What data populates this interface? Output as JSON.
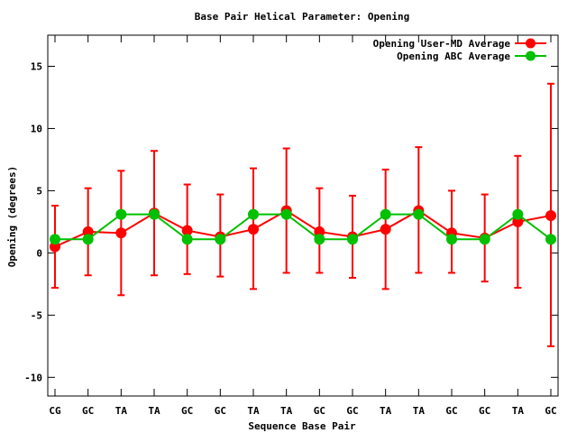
{
  "chart_data": {
    "type": "line",
    "title": "Base Pair Helical Parameter: Opening",
    "xlabel": "Sequence Base Pair",
    "ylabel": "Opening (degrees)",
    "categories": [
      "CG",
      "GC",
      "TA",
      "TA",
      "GC",
      "GC",
      "TA",
      "TA",
      "GC",
      "GC",
      "TA",
      "TA",
      "GC",
      "GC",
      "TA",
      "GC"
    ],
    "ylim": [
      -11.5,
      17.5
    ],
    "yticks": [
      -10,
      -5,
      0,
      5,
      10,
      15
    ],
    "ytick_labels": [
      "-10",
      "-5",
      "0",
      "5",
      "10",
      "15"
    ],
    "grid": false,
    "legend_position": "top-right",
    "series": [
      {
        "name": "Opening User-MD Average",
        "color": "#ff0000",
        "marker_color": "#ff0000",
        "values": [
          0.5,
          1.7,
          1.6,
          3.2,
          1.8,
          1.3,
          1.9,
          3.4,
          1.7,
          1.3,
          1.9,
          3.4,
          1.6,
          1.2,
          2.5,
          3.0
        ],
        "error_low": [
          -2.8,
          -1.8,
          -3.4,
          -1.8,
          -1.7,
          -1.9,
          -2.9,
          -1.6,
          -1.6,
          -2.0,
          -2.9,
          -1.6,
          -1.6,
          -2.3,
          -2.8,
          -7.5
        ],
        "error_high": [
          3.8,
          5.2,
          6.6,
          8.2,
          5.5,
          4.7,
          6.8,
          8.4,
          5.2,
          4.6,
          6.7,
          8.5,
          5.0,
          4.7,
          7.8,
          13.6
        ]
      },
      {
        "name": "Opening ABC Average",
        "color": "#00c000",
        "marker_color": "#00c000",
        "values": [
          1.1,
          1.1,
          3.1,
          3.1,
          1.1,
          1.1,
          3.1,
          3.1,
          1.1,
          1.1,
          3.1,
          3.1,
          1.1,
          1.1,
          3.1,
          1.1
        ]
      }
    ]
  }
}
